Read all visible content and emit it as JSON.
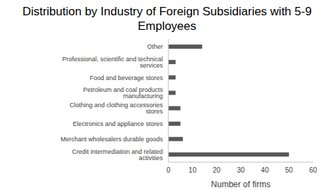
{
  "chart_data": {
    "type": "bar",
    "orientation": "horizontal",
    "title": "Distribution by Industry of Foreign Subsidiaries with 5-9 Employees",
    "x_label": "Number of firms",
    "categories": [
      "Other",
      "Professional, scientific and technical services",
      "Food and beverage stores",
      "Petroleum and coal products manufacturing",
      "Clothing and clothing accessories  stores",
      "Electronics and appliance stores",
      "Merchant wholesalers durable goods",
      "Credit intermediation and related activities"
    ],
    "values": [
      14,
      3,
      3,
      3,
      5,
      5,
      6,
      50
    ],
    "color": "#595959",
    "xlim": [
      0,
      60
    ],
    "xticks": [
      0,
      10,
      20,
      30,
      40,
      50,
      60
    ],
    "grid": false
  }
}
